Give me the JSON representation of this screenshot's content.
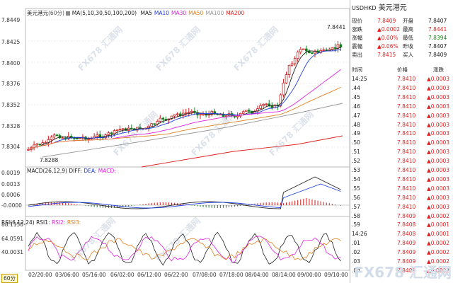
{
  "chart": {
    "legend": {
      "name": "美元港元",
      "period": "(60分)",
      "ma_title": "MA(5,10,30,50,100,200)",
      "ma_items": [
        {
          "label": "MA5",
          "color": "#222222"
        },
        {
          "label": "MA10",
          "color": "#2040e0"
        },
        {
          "label": "MA30",
          "color": "#e020e0"
        },
        {
          "label": "MA50",
          "color": "#e08020"
        },
        {
          "label": "MA100",
          "color": "#999999"
        },
        {
          "label": "MA200",
          "color": "#e02020"
        }
      ]
    },
    "price_axis": [
      "7.8449",
      "7.8425",
      "7.8400",
      "7.8376",
      "7.8352",
      "7.8328",
      "7.8304"
    ],
    "high_marker": "7.8441",
    "low_marker": "7.8288",
    "macd": {
      "legend": [
        "MACD(26,12,9)",
        "DIFF:",
        "DEA:",
        "MACD:"
      ],
      "axis": [
        "0.0019",
        "0.0013",
        "0.0006",
        "-0.0000"
      ]
    },
    "rsi": {
      "legend": [
        "RSI(6,12,24)",
        "RSI1:",
        "RSI2:",
        "RSI3:"
      ],
      "axis": [
        "88.1150",
        "64.0591",
        "40.0031"
      ]
    },
    "dates": [
      "02/20:00",
      "03/06:00",
      "05/16:00",
      "06/02:00",
      "06/12:00",
      "06/22:00",
      "07/08:00",
      "07/18:00",
      "08/04:00",
      "08/14:00",
      "09/00:00",
      "09/10:00"
    ],
    "period_badge": "60分"
  },
  "watermark": "FX678 汇通网",
  "logo": "FX678 汇通网",
  "quote": {
    "code": "USDHKD",
    "name": "美元港元",
    "rows": [
      {
        "l1": "现价",
        "v1": "7.8409",
        "l2": "开盘",
        "v2": "7.8407"
      },
      {
        "l1": "涨跌",
        "v1": "▲0.0002",
        "l2": "最高",
        "v2": "7.8441"
      },
      {
        "l1": "涨幅",
        "v1": "▲0.00%",
        "l2": "最低",
        "v2": "7.8394"
      },
      {
        "l1": "震幅",
        "v1": "▲0.06%",
        "l2": "昨收",
        "v2": "7.8407"
      },
      {
        "l1": "卖出",
        "v1": "7.8415",
        "l2": "买入",
        "v2": "7.8409"
      }
    ],
    "tick_header": [
      "时间",
      "价格",
      "涨跌"
    ],
    "ticks": [
      {
        "t": "14:25",
        "p": "7.8410",
        "c": "0.0003"
      },
      {
        "t": ".44",
        "p": "7.8410",
        "c": "0.0003"
      },
      {
        "t": ".45",
        "p": "7.8410",
        "c": "0.0003"
      },
      {
        "t": ".46",
        "p": "7.8410",
        "c": "0.0003"
      },
      {
        "t": ".47",
        "p": "7.8410",
        "c": "0.0003"
      },
      {
        "t": ".48",
        "p": "7.8410",
        "c": "0.0003"
      },
      {
        "t": ".49",
        "p": "7.8410",
        "c": "0.0003"
      },
      {
        "t": ".50",
        "p": "7.8410",
        "c": "0.0003"
      },
      {
        "t": ".51",
        "p": "7.8410",
        "c": "0.0003"
      },
      {
        "t": ".52",
        "p": "7.8410",
        "c": "0.0003"
      },
      {
        "t": ".53",
        "p": "7.8410",
        "c": "0.0003"
      },
      {
        "t": ".54",
        "p": "7.8410",
        "c": "0.0003"
      },
      {
        "t": ".55",
        "p": "7.8410",
        "c": "0.0003"
      },
      {
        "t": ".56",
        "p": "7.8410",
        "c": "0.0003"
      },
      {
        "t": ".57",
        "p": "7.8410",
        "c": "0.0003"
      },
      {
        "t": ".58",
        "p": "7.8409",
        "c": "0.0002"
      },
      {
        "t": ".59",
        "p": "7.8408",
        "c": "0.0001"
      },
      {
        "t": "14:26",
        "p": "7.8408",
        "c": "0.0001"
      },
      {
        "t": ".01",
        "p": "7.8409",
        "c": "0.0002"
      },
      {
        "t": ".02",
        "p": "7.8409",
        "c": "0.0002"
      },
      {
        "t": ".03",
        "p": "7.8409",
        "c": "0.0002"
      },
      {
        "t": ".04",
        "p": "7.8409",
        "c": "0.0002"
      }
    ]
  }
}
